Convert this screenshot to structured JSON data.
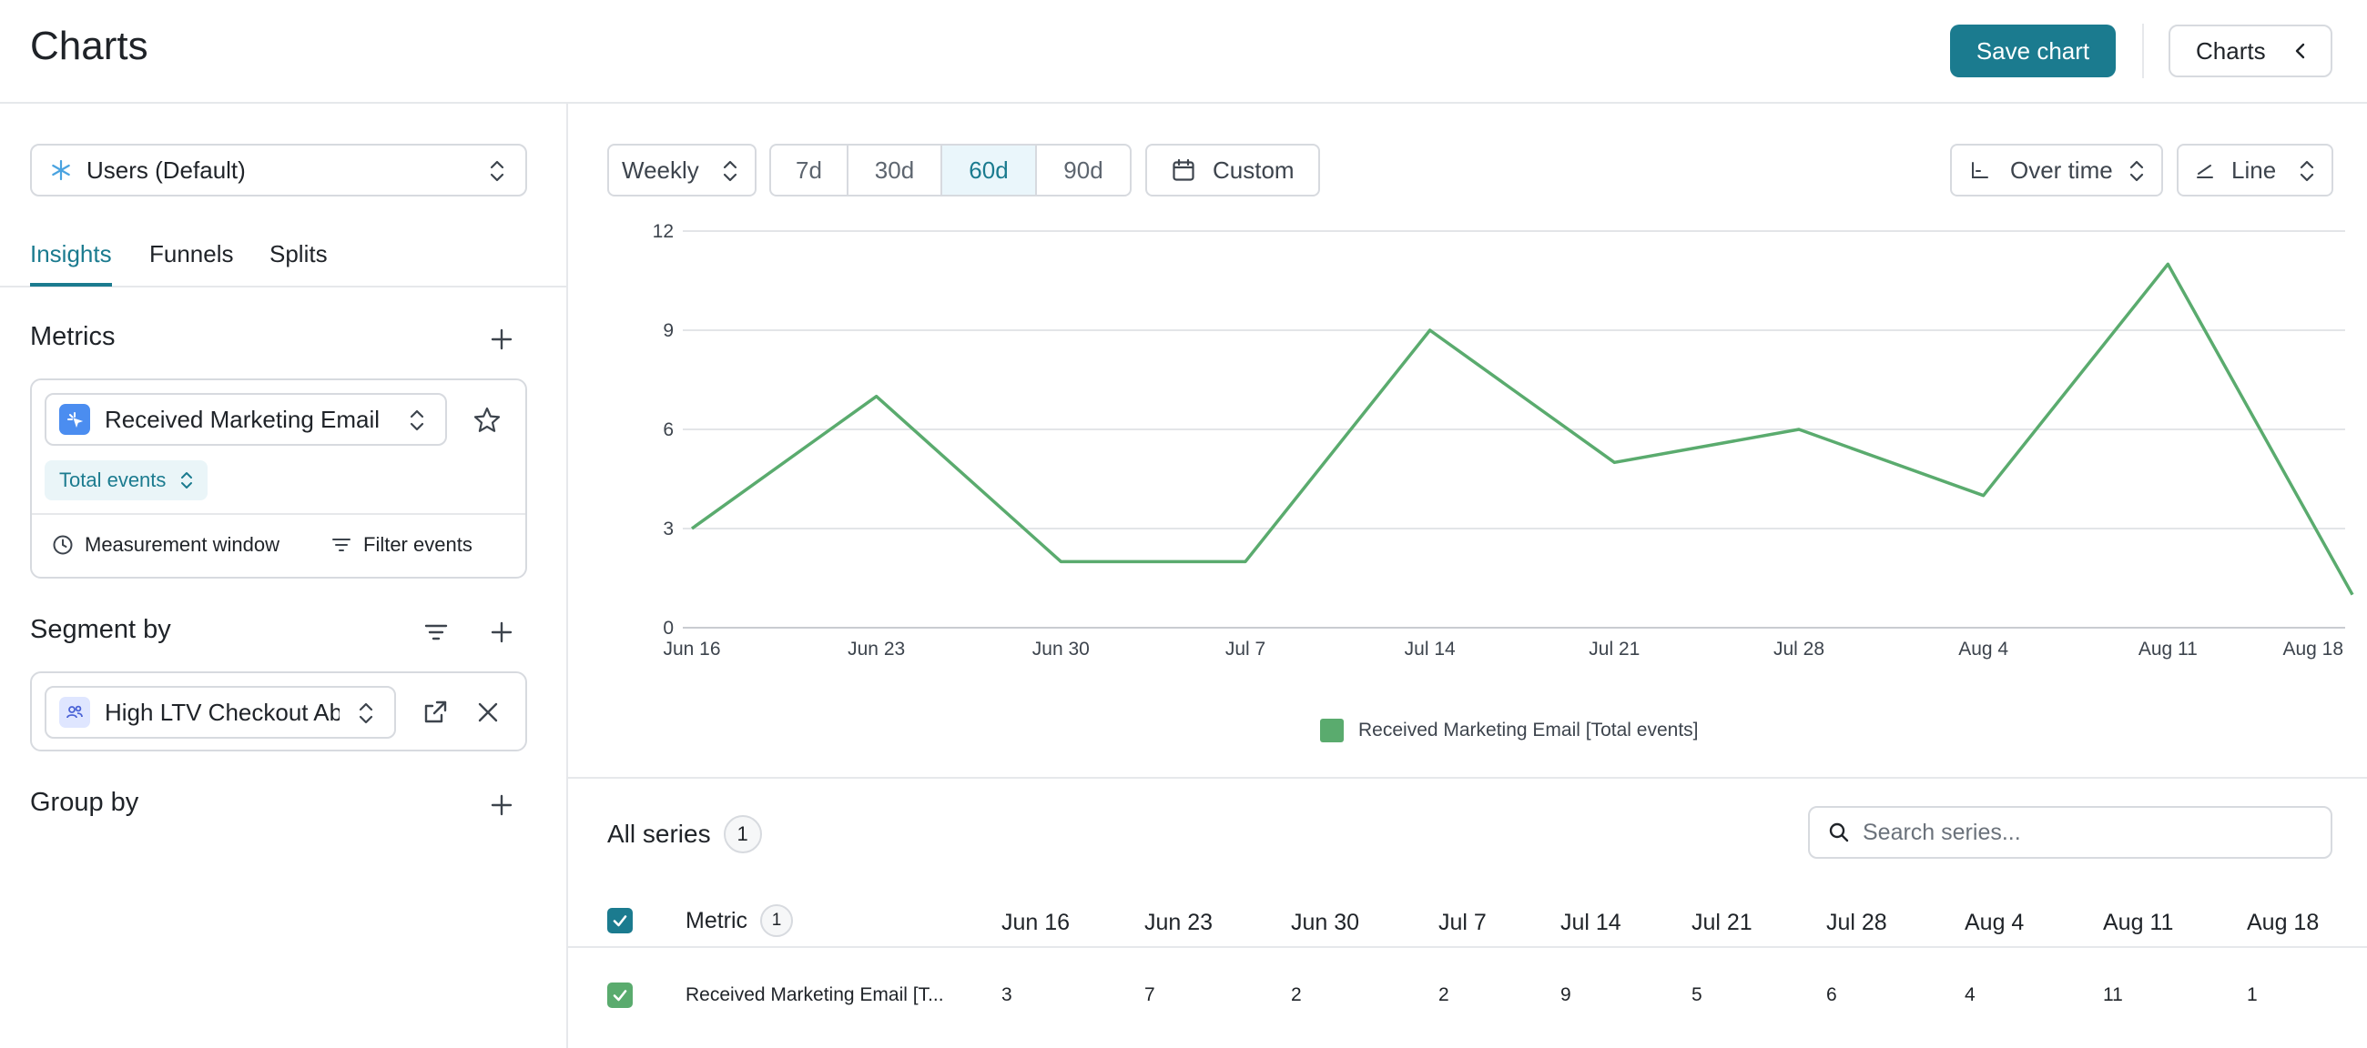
{
  "header": {
    "title": "Charts",
    "save_label": "Save chart",
    "charts_label": "Charts"
  },
  "sidebar": {
    "dataset": "Users (Default)",
    "tabs": [
      "Insights",
      "Funnels",
      "Splits"
    ],
    "metrics_title": "Metrics",
    "metric_name": "Received Marketing Email",
    "aggregation": "Total events",
    "measurement_window": "Measurement window",
    "filter_events": "Filter events",
    "segment_title": "Segment by",
    "segment_name": "High LTV Checkout Ab",
    "group_title": "Group by"
  },
  "toolbar": {
    "interval": "Weekly",
    "ranges": [
      "7d",
      "30d",
      "60d",
      "90d"
    ],
    "active_range": "60d",
    "custom": "Custom",
    "view_mode": "Over time",
    "chart_type": "Line"
  },
  "chart_data": {
    "type": "line",
    "x": [
      "Jun 16",
      "Jun 23",
      "Jun 30",
      "Jul 7",
      "Jul 14",
      "Jul 21",
      "Jul 28",
      "Aug 4",
      "Aug 11",
      "Aug 18"
    ],
    "series": [
      {
        "name": "Received Marketing Email [Total events]",
        "values": [
          3,
          7,
          2,
          2,
          9,
          5,
          6,
          4,
          11,
          1
        ],
        "color": "#5aab6e"
      }
    ],
    "yticks": [
      0,
      3,
      6,
      9,
      12
    ],
    "ylim": [
      0,
      12
    ],
    "grid": true,
    "legend_position": "bottom"
  },
  "series_table": {
    "title": "All series",
    "count": "1",
    "search_placeholder": "Search series...",
    "metric_header": "Metric",
    "metric_count": "1",
    "row_label": "Received Marketing Email [T..."
  }
}
